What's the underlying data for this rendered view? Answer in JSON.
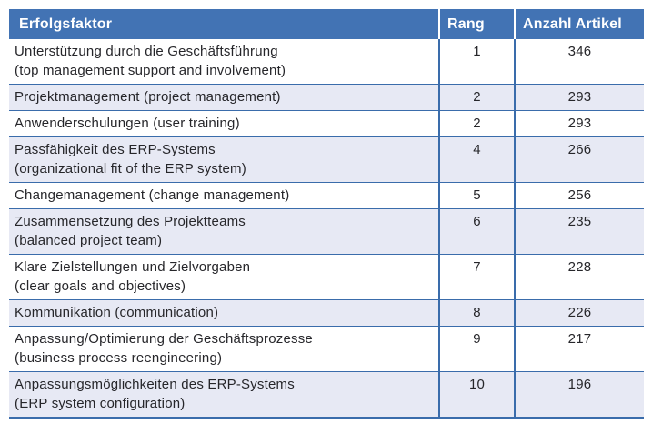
{
  "colors": {
    "header_bg": "#4273b4",
    "header_text": "#ffffff",
    "border": "#3a6cab",
    "alt_row_bg": "#e7e9f4",
    "text": "#26262a",
    "page_bg": "#ffffff"
  },
  "table": {
    "columns": [
      {
        "label": "Erfolgsfaktor"
      },
      {
        "label": "Rang"
      },
      {
        "label": "Anzahl Artikel"
      }
    ],
    "rows": [
      {
        "factor": "Unterstützung durch die Geschäftsführung\n(top management support and involvement)",
        "rang": "1",
        "anzahl": "346"
      },
      {
        "factor": "Projektmanagement (project management)",
        "rang": "2",
        "anzahl": "293"
      },
      {
        "factor": "Anwenderschulungen (user training)",
        "rang": "2",
        "anzahl": "293"
      },
      {
        "factor": "Passfähigkeit des ERP-Systems\n(organizational fit of the ERP system)",
        "rang": "4",
        "anzahl": "266"
      },
      {
        "factor": "Changemanagement (change management)",
        "rang": "5",
        "anzahl": "256"
      },
      {
        "factor": "Zusammensetzung des Projektteams\n(balanced project team)",
        "rang": "6",
        "anzahl": "235"
      },
      {
        "factor": "Klare Zielstellungen und Zielvorgaben\n(clear goals and objectives)",
        "rang": "7",
        "anzahl": "228"
      },
      {
        "factor": "Kommunikation (communication)",
        "rang": "8",
        "anzahl": "226"
      },
      {
        "factor": "Anpassung/Optimierung der Geschäftsprozesse\n(business process reengineering)",
        "rang": "9",
        "anzahl": "217"
      },
      {
        "factor": "Anpassungsmöglichkeiten des ERP-Systems\n(ERP system configuration)",
        "rang": "10",
        "anzahl": "196"
      }
    ]
  }
}
